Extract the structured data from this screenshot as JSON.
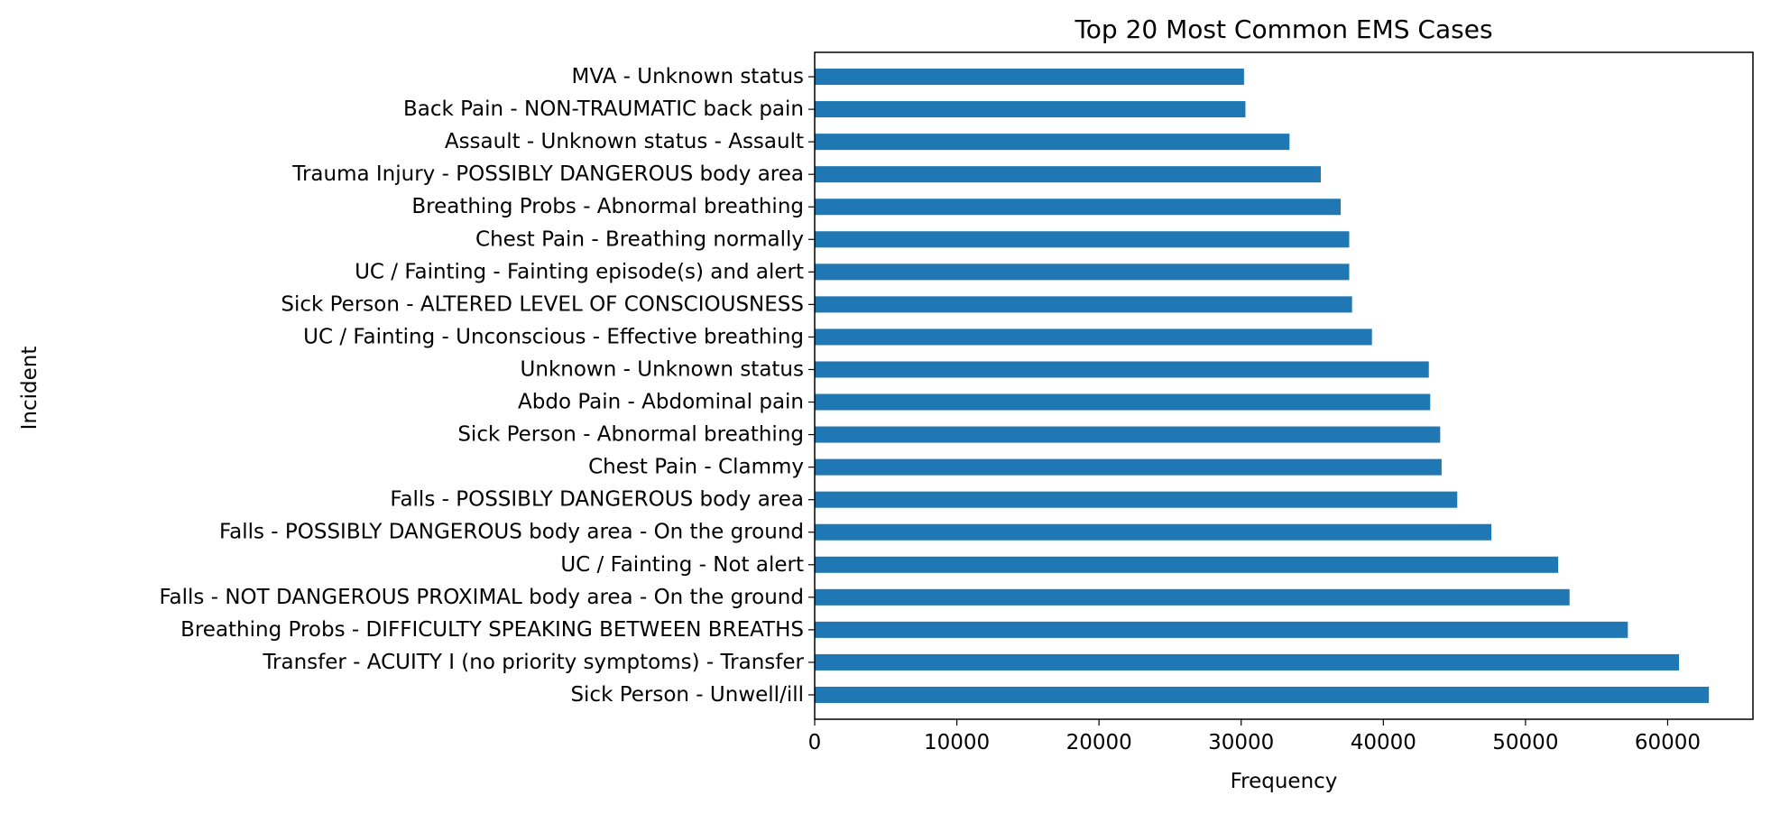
{
  "chart_data": {
    "type": "bar",
    "orientation": "horizontal",
    "title": "Top 20 Most Common EMS Cases",
    "xlabel": "Frequency",
    "ylabel": "Incident",
    "xlim": [
      0,
      66000
    ],
    "xticks": [
      0,
      10000,
      20000,
      30000,
      40000,
      50000,
      60000
    ],
    "grid": false,
    "bar_color": "#1f77b4",
    "categories": [
      "Sick Person - Unwell/ill",
      "Transfer - ACUITY I (no priority symptoms) - Transfer",
      "Breathing Probs - DIFFICULTY SPEAKING BETWEEN BREATHS",
      "Falls - NOT DANGEROUS PROXIMAL body area - On the ground",
      "UC / Fainting - Not alert",
      "Falls - POSSIBLY DANGEROUS body area - On the ground",
      "Falls - POSSIBLY DANGEROUS body area",
      "Chest Pain - Clammy",
      "Sick Person - Abnormal breathing",
      "Abdo Pain - Abdominal pain",
      "Unknown - Unknown status",
      "UC / Fainting - Unconscious - Effective breathing",
      "Sick Person - ALTERED LEVEL OF CONSCIOUSNESS",
      "UC / Fainting - Fainting episode(s) and alert",
      "Chest Pain - Breathing normally",
      "Breathing Probs - Abnormal breathing",
      "Trauma Injury - POSSIBLY DANGEROUS body area",
      "Assault - Unknown status - Assault",
      "Back Pain - NON-TRAUMATIC back pain",
      "MVA - Unknown status"
    ],
    "values": [
      62900,
      60800,
      57200,
      53100,
      52300,
      47600,
      45200,
      44100,
      44000,
      43300,
      43200,
      39200,
      37800,
      37600,
      37600,
      37000,
      35600,
      33400,
      30300,
      30200
    ]
  }
}
